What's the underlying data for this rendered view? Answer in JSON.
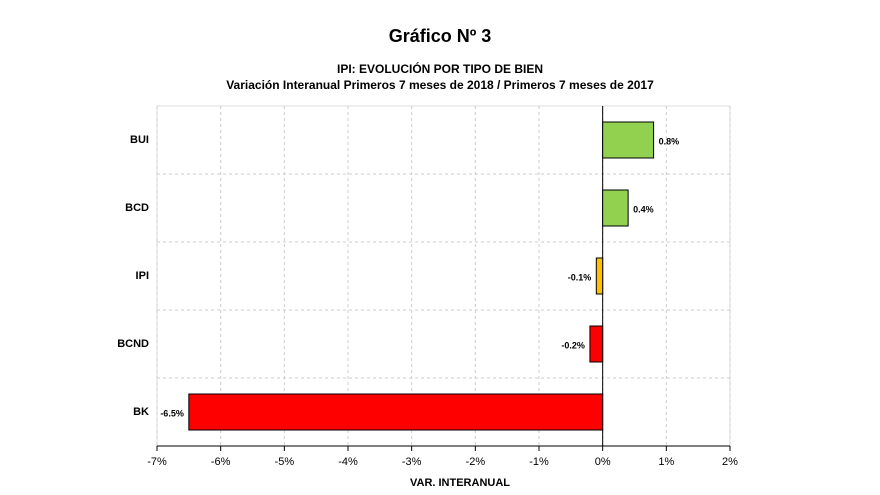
{
  "chart_data": {
    "type": "bar",
    "orientation": "horizontal",
    "title": "Gráfico Nº 3",
    "subtitle": [
      "IPI: EVOLUCIÓN POR TIPO DE BIEN",
      "Variación Interanual Primeros 7 meses de 2018 /  Primeros 7 meses de 2017"
    ],
    "x_label": "VAR. INTERANUAL",
    "categories": [
      "BUI",
      "BCD",
      "IPI",
      "BCND",
      "BK"
    ],
    "values": [
      0.8,
      0.4,
      -0.1,
      -0.2,
      -6.5
    ],
    "value_labels": [
      "0.8%",
      "0.4%",
      "-0.1%",
      "-0.2%",
      "-6.5%"
    ],
    "colors": [
      "#92d050",
      "#92d050",
      "#ffc000",
      "#ff0000",
      "#ff0000"
    ],
    "xlim": [
      -7,
      2
    ],
    "xticks": [
      {
        "value": -7,
        "label": "-7%"
      },
      {
        "value": -6,
        "label": "-6%"
      },
      {
        "value": -5,
        "label": "-5%"
      },
      {
        "value": -4,
        "label": "-4%"
      },
      {
        "value": -3,
        "label": "-3%"
      },
      {
        "value": -2,
        "label": "-2%"
      },
      {
        "value": -1,
        "label": "-1%"
      },
      {
        "value": 0,
        "label": "0%"
      },
      {
        "value": 1,
        "label": "1%"
      },
      {
        "value": 2,
        "label": "2%"
      }
    ],
    "grid": true
  }
}
